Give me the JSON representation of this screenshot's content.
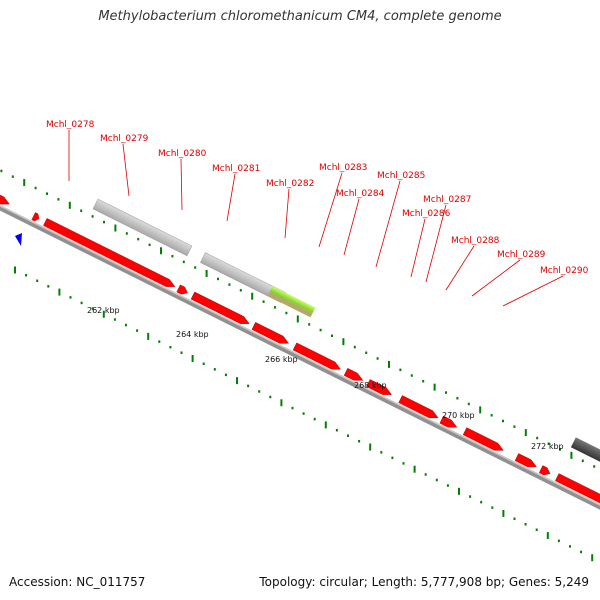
{
  "title": "Methylobacterium chloromethanicum CM4, complete genome",
  "footer": {
    "accession": "Accession: NC_011757",
    "stats": "Topology: circular; Length: 5,777,908 bp; Genes: 5,249"
  },
  "kbp_labels": [
    "262 kbp",
    "264 kbp",
    "266 kbp",
    "268 kbp",
    "270 kbp",
    "272 kbp"
  ],
  "genes": [
    {
      "id": "Mchl_0278",
      "dir": "+",
      "color": "#ff0000"
    },
    {
      "id": "Mchl_0279",
      "dir": "+",
      "color": "#ff0000"
    },
    {
      "id": "Mchl_0280",
      "dir": "+",
      "color": "#ff0000"
    },
    {
      "id": "Mchl_0281",
      "dir": "+",
      "color": "#ff0000"
    },
    {
      "id": "Mchl_0282",
      "dir": "+",
      "color": "#ff0000"
    },
    {
      "id": "Mchl_0283",
      "dir": "+",
      "color": "#ff0000"
    },
    {
      "id": "Mchl_0284",
      "dir": "+",
      "color": "#ff0000"
    },
    {
      "id": "Mchl_0285",
      "dir": "+",
      "color": "#ff0000"
    },
    {
      "id": "Mchl_0286",
      "dir": "+",
      "color": "#ff0000"
    },
    {
      "id": "Mchl_0287",
      "dir": "+",
      "color": "#ff0000"
    },
    {
      "id": "Mchl_0288",
      "dir": "+",
      "color": "#ff0000"
    },
    {
      "id": "Mchl_0289",
      "dir": "+",
      "color": "#ff0000"
    },
    {
      "id": "Mchl_0290",
      "dir": "+",
      "color": "#ff0000"
    }
  ],
  "colors": {
    "gene": "#ff0000",
    "label": "#dd0000",
    "backbone": "#808080",
    "tick": "#008000",
    "feature_grey": "#c0c0c0",
    "feature_green": "#99ee33",
    "feature_dark": "#555555",
    "marker": "#0000ff"
  }
}
